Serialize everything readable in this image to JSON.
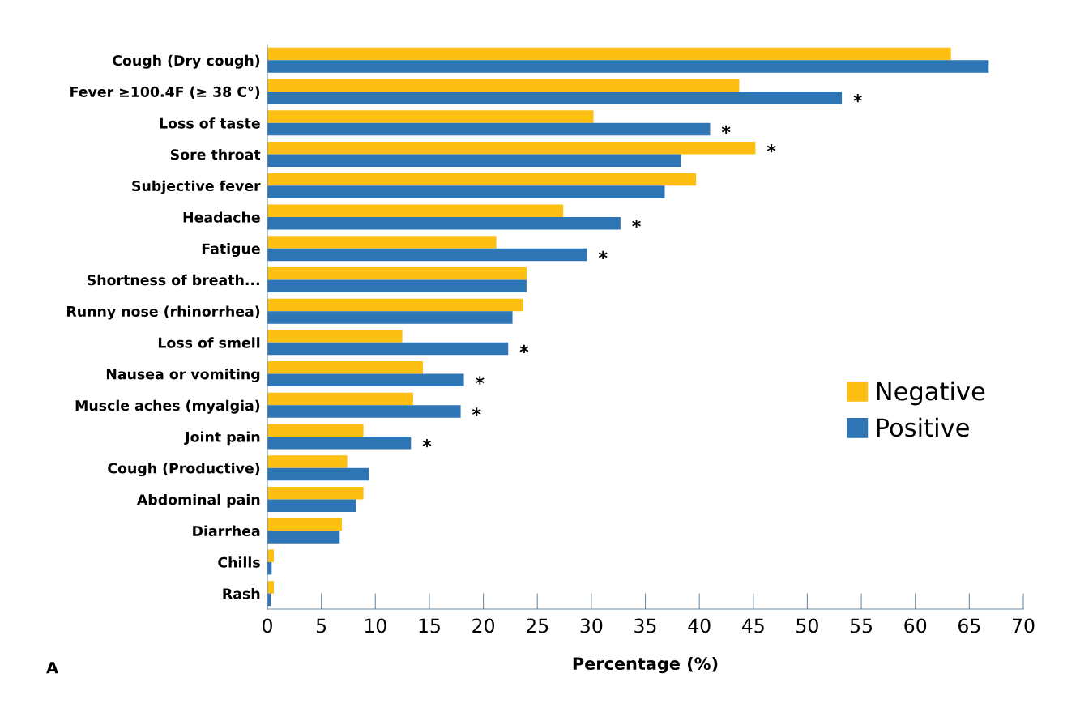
{
  "chart_data": {
    "type": "bar",
    "orientation": "horizontal",
    "xlabel": "Percentage (%)",
    "categories": [
      "Cough (Dry cough)",
      "Fever ≥100.4F (≥ 38 C°)",
      "Loss of taste",
      "Sore throat",
      "Subjective fever",
      "Headache",
      "Fatigue",
      "Shortness of breath...",
      "Runny nose (rhinorrhea)",
      "Loss of smell",
      "Nausea or vomiting",
      "Muscle aches (myalgia)",
      "Joint pain",
      "Cough (Productive)",
      "Abdominal pain",
      "Diarrhea",
      "Chills",
      "Rash"
    ],
    "series": [
      {
        "name": "Negative",
        "color": "#fdbf11",
        "values": [
          63.3,
          43.7,
          30.2,
          45.2,
          39.7,
          27.4,
          21.2,
          24.0,
          23.7,
          12.5,
          14.4,
          13.5,
          8.9,
          7.4,
          8.9,
          6.9,
          0.6,
          0.6
        ]
      },
      {
        "name": "Positive",
        "color": "#2e75b6",
        "values": [
          66.8,
          53.2,
          41.0,
          38.3,
          36.8,
          32.7,
          29.6,
          24.0,
          22.7,
          22.3,
          18.2,
          17.9,
          13.3,
          9.4,
          8.2,
          6.7,
          0.4,
          0.3
        ]
      }
    ],
    "xlim": [
      0,
      70
    ],
    "xticks": [
      0,
      5,
      10,
      15,
      20,
      25,
      30,
      35,
      40,
      45,
      50,
      55,
      60,
      65,
      70
    ],
    "grid": false,
    "legend": "right",
    "annotations": [
      {
        "text": "*",
        "x": 53.2,
        "y": "Fever ≥100.4F (≥ 38 C°)"
      },
      {
        "text": "*",
        "x": 41.0,
        "y": "Loss of taste"
      },
      {
        "text": "*",
        "x": 45.2,
        "y": "Sore throat"
      },
      {
        "text": "*",
        "x": 32.7,
        "y": "Headache"
      },
      {
        "text": "*",
        "x": 29.6,
        "y": "Fatigue"
      },
      {
        "text": "*",
        "x": 22.3,
        "y": "Loss of smell"
      },
      {
        "text": "*",
        "x": 18.2,
        "y": "Nausea or vomiting"
      },
      {
        "text": "*",
        "x": 17.9,
        "y": "Muscle aches (myalgia)"
      },
      {
        "text": "*",
        "x": 13.3,
        "y": "Joint pain"
      },
      "A"
    ]
  }
}
